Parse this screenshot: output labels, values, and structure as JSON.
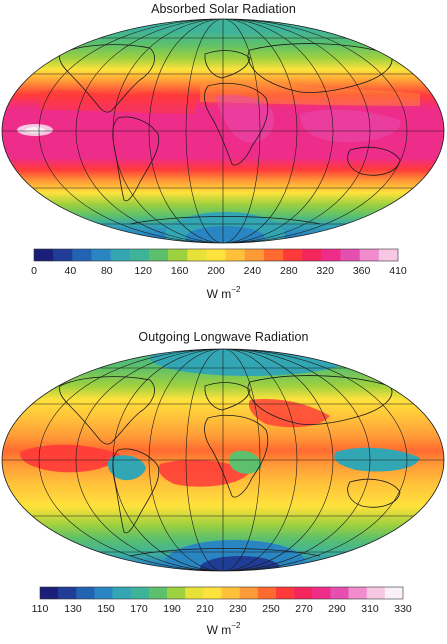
{
  "figure": {
    "panels": [
      {
        "title": "Absorbed Solar Radiation",
        "unit": "W m",
        "unit_exp": "−2",
        "colorbar": {
          "tick_labels": [
            "0",
            "40",
            "80",
            "120",
            "160",
            "200",
            "240",
            "280",
            "320",
            "360",
            "410"
          ],
          "colors": [
            "#1a1f7a",
            "#1f3c96",
            "#2363b4",
            "#2a86c2",
            "#33a6b4",
            "#3fb39a",
            "#5cc06c",
            "#9ed13f",
            "#e6e23a",
            "#ffe23c",
            "#ffc13a",
            "#ff9a37",
            "#ff6a30",
            "#ff3a3a",
            "#f5265e",
            "#ee2d8a",
            "#e64eb0",
            "#f08ccc",
            "#f6c8e4"
          ]
        }
      },
      {
        "title": "Outgoing Longwave Radiation",
        "unit": "W m",
        "unit_exp": "−2",
        "colorbar": {
          "tick_labels": [
            "110",
            "130",
            "150",
            "170",
            "190",
            "210",
            "230",
            "250",
            "270",
            "290",
            "310",
            "330"
          ],
          "colors": [
            "#1a1f7a",
            "#1f3c96",
            "#2363b4",
            "#2a86c2",
            "#33a6b4",
            "#3fb39a",
            "#5cc06c",
            "#9ed13f",
            "#e6e23a",
            "#ffe23c",
            "#ffc13a",
            "#ff9a37",
            "#ff6a30",
            "#ff3a3a",
            "#f5265e",
            "#ee2d8a",
            "#e64eb0",
            "#f08ccc",
            "#f6c8e4",
            "#faf0f5"
          ]
        }
      }
    ]
  }
}
